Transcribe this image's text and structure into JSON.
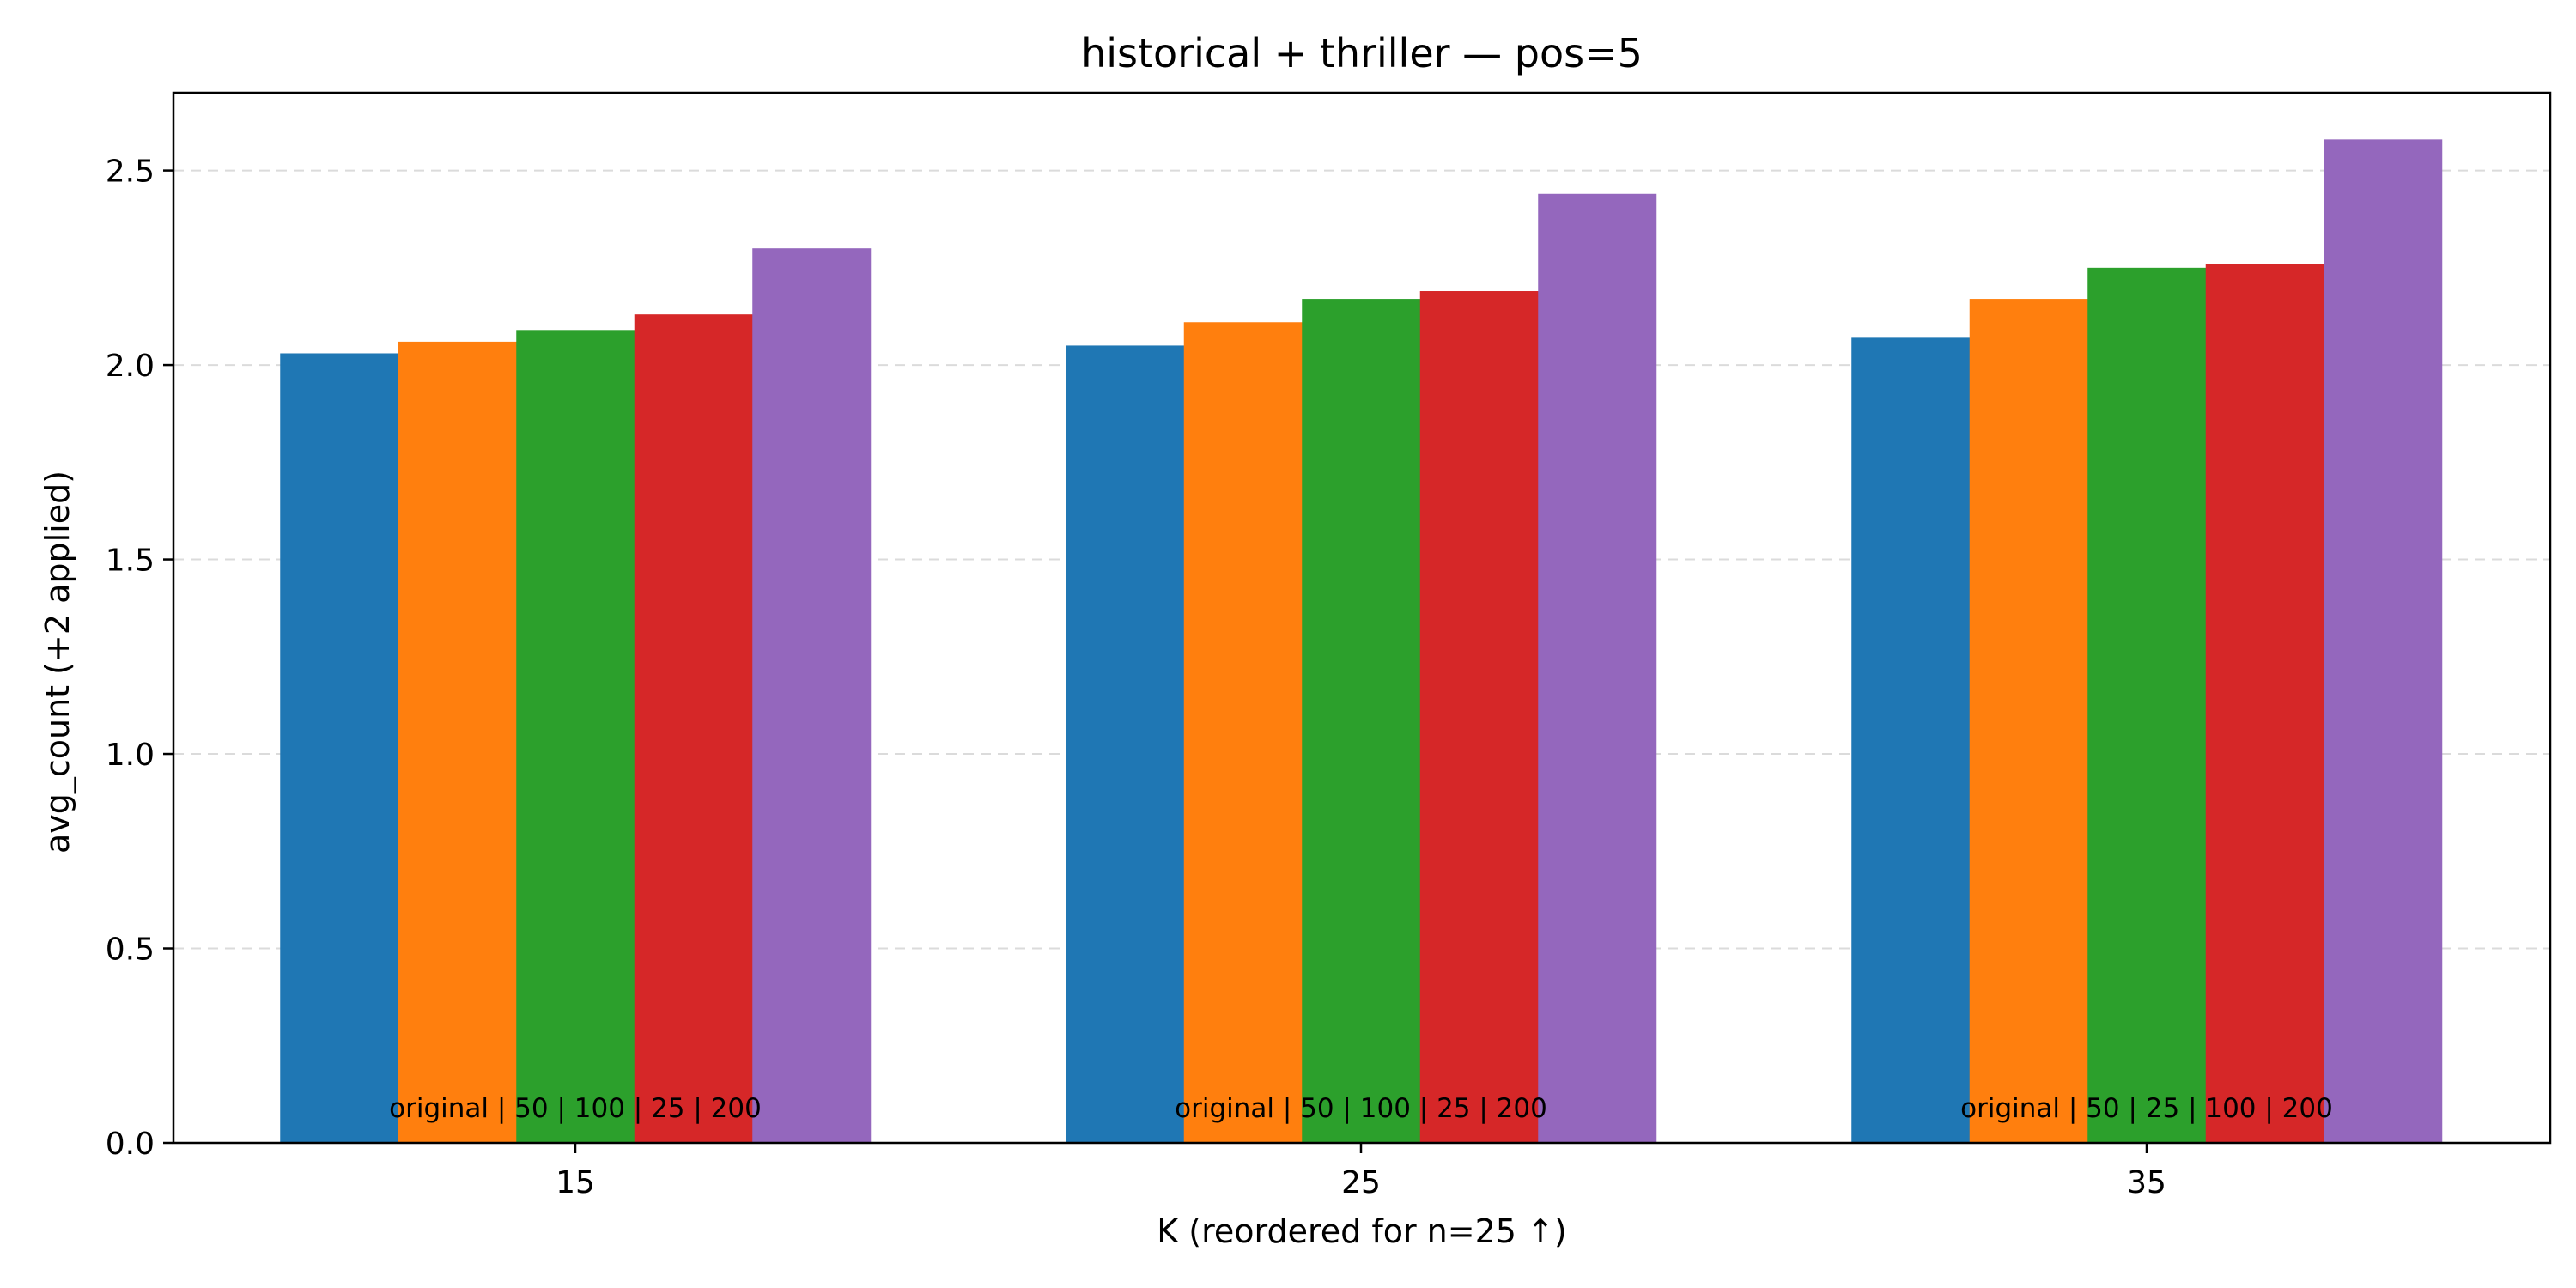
{
  "chart_data": {
    "type": "bar",
    "title": "historical + thriller — pos=5",
    "xlabel": "K (reordered for n=25 ↑)",
    "ylabel": "avg_count (+2 applied)",
    "categories": [
      "15",
      "25",
      "35"
    ],
    "ylim": [
      0,
      2.7
    ],
    "yticks": [
      "0.0",
      "0.5",
      "1.0",
      "1.5",
      "2.0",
      "2.5"
    ],
    "grid": "y dashed",
    "series": [
      {
        "color": "#1f77b4",
        "values": [
          2.03,
          2.05,
          2.07
        ]
      },
      {
        "color": "#ff7f0e",
        "values": [
          2.06,
          2.11,
          2.17
        ]
      },
      {
        "color": "#2ca02c",
        "values": [
          2.09,
          2.17,
          2.25
        ]
      },
      {
        "color": "#d62728",
        "values": [
          2.13,
          2.19,
          2.26
        ]
      },
      {
        "color": "#9467bd",
        "values": [
          2.3,
          2.44,
          2.58
        ]
      }
    ],
    "group_annotations": [
      "original | 50 | 100 | 25 | 200",
      "original | 50 | 100 | 25 | 200",
      "original | 50 | 25 | 100 | 200"
    ]
  }
}
